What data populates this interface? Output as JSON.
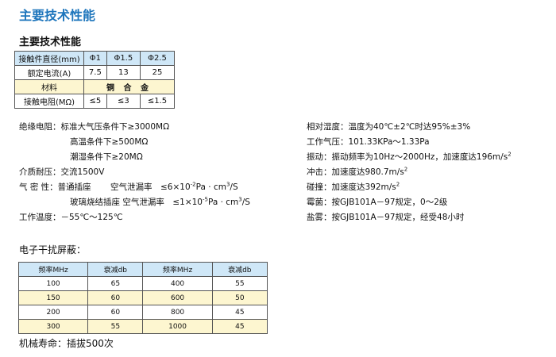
{
  "title": "主要技术性能",
  "subtitle": "主要技术性能",
  "table1": {
    "rows": [
      [
        "接触件直径(mm)",
        "Φ1",
        "Φ1.5",
        "Φ2.5"
      ],
      [
        "额定电流(A)",
        "7.5",
        "13",
        "25"
      ],
      [
        "材料",
        "铜 合 金"
      ],
      [
        "接触电阻(MΩ)",
        "≤5",
        "≤3",
        "≤1.5"
      ]
    ]
  },
  "left_specs": [
    "绝缘电阻：标准大气压条件下≥3000MΩ",
    "高温条件下≥500MΩ",
    "潮湿条件下≥20MΩ",
    "介质耐压：交流1500V",
    "气 密 性：普通插座　　 空气泄漏率　≤6×10",
    "玻璃烧结插座 空气泄漏率　≤1×10",
    "工作温度：－55℃～125℃"
  ],
  "leak_exp": [
    "-2",
    "-5"
  ],
  "leak_unit": "Pa · cm",
  "leak_unit_exp": "3",
  "leak_unit_tail": "/S",
  "right_specs": [
    "相对湿度：温度为40℃±2℃时达95%±3%",
    "工作气压：101.33KPa～1.33Pa",
    "振动：振动频率为10Hz～2000Hz，加速度达196m/s",
    "冲击：加速度达980.7m/s",
    "碰撞：加速度达392m/s",
    "霉菌：按GJB101A－97规定，0～2级",
    "盐雾：按GJB101A－97规定，经受48小时"
  ],
  "sq": "2",
  "emi_title": "电子干扰屏蔽：",
  "table2": {
    "headers": [
      "频率MHz",
      "衰减db",
      "频率MHz",
      "衰减db"
    ],
    "rows": [
      [
        "100",
        "65",
        "400",
        "55"
      ],
      [
        "150",
        "60",
        "600",
        "50"
      ],
      [
        "200",
        "60",
        "800",
        "45"
      ],
      [
        "300",
        "55",
        "1000",
        "45"
      ]
    ]
  },
  "life": "机械寿命：插拔500次",
  "colors": {
    "title": "#1d75bc",
    "header_bg": "#cfe7f7",
    "alt_row_bg": "#fdf6d0"
  }
}
